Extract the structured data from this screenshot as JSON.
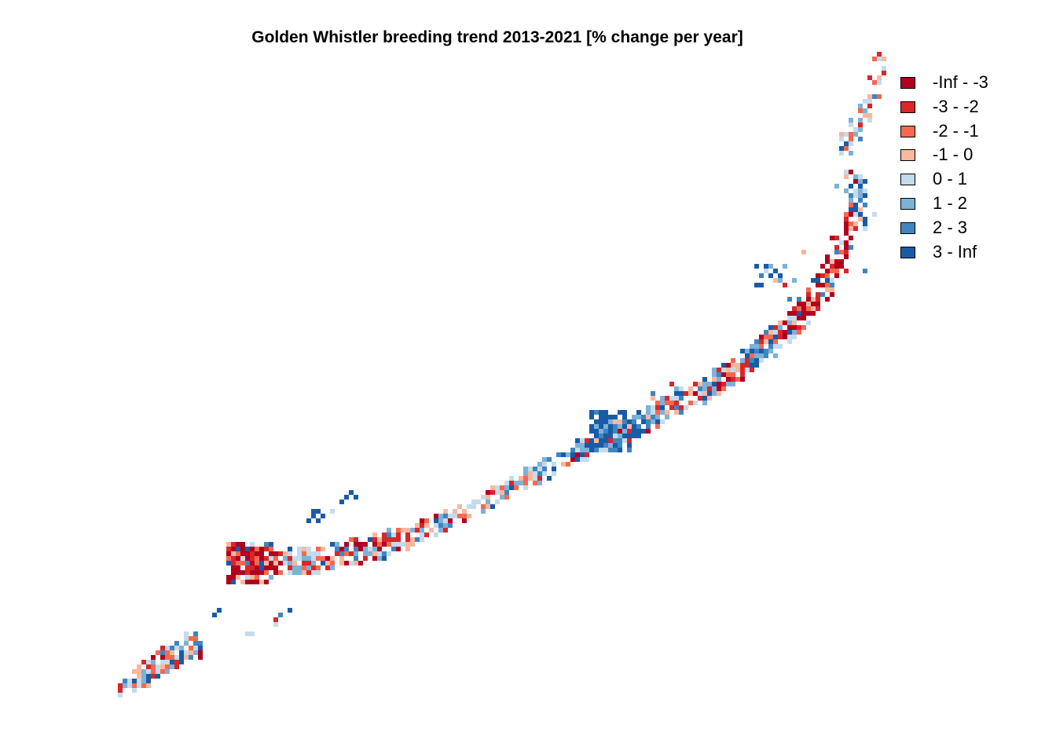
{
  "map": {
    "title": "Golden Whistler breeding trend 2013-2021 [% change per year]"
  },
  "legend": {
    "entries": [
      {
        "label": "-Inf - -3",
        "color": "#b2001f"
      },
      {
        "label": "-3 - -2",
        "color": "#d9262b"
      },
      {
        "label": "-2 - -1",
        "color": "#f4694f"
      },
      {
        "label": "-1 - 0",
        "color": "#f9b89e"
      },
      {
        "label": "0 - 1",
        "color": "#c2dced"
      },
      {
        "label": "1 - 2",
        "color": "#7cb2d8"
      },
      {
        "label": "2 - 3",
        "color": "#3f85c0"
      },
      {
        "label": "3 - Inf",
        "color": "#1a5ba6"
      }
    ]
  }
}
